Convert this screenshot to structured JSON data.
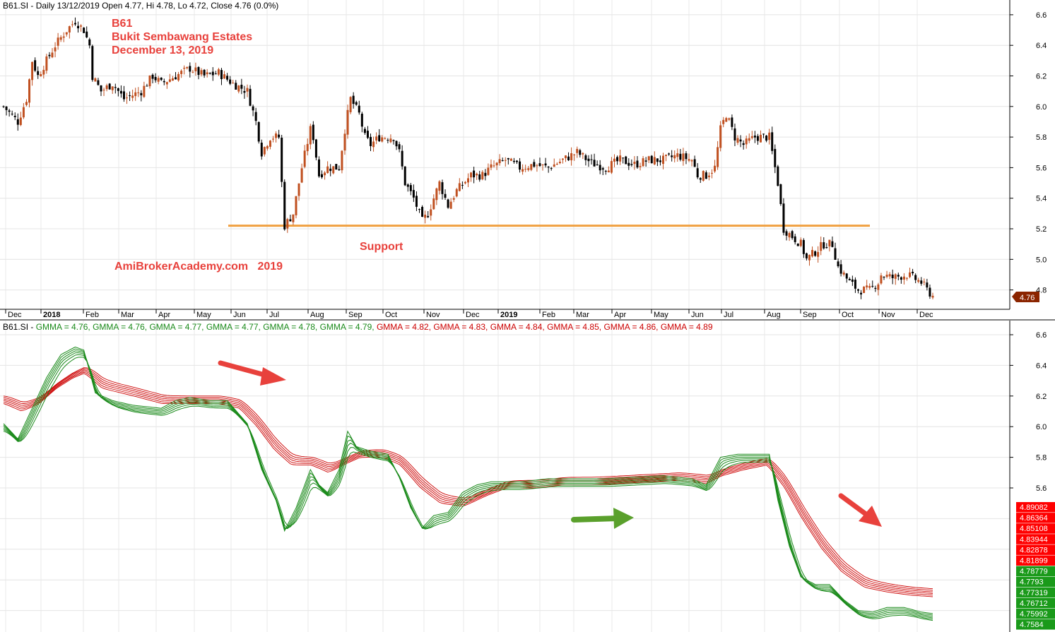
{
  "header": {
    "title_top": "B61.SI - Daily 13/12/2019 Open 4.77, Hi 4.78, Lo 4.72, Close 4.76 (0.0%)",
    "title_bottom": [
      {
        "text": "B61.SI - ",
        "color": "#000000"
      },
      {
        "text": "GMMA = 4.76, ",
        "color": "#1a8a1a"
      },
      {
        "text": "GMMA = 4.76, ",
        "color": "#1a8a1a"
      },
      {
        "text": "GMMA = 4.77, ",
        "color": "#1a8a1a"
      },
      {
        "text": "GMMA = 4.77, ",
        "color": "#1a8a1a"
      },
      {
        "text": "GMMA = 4.78, ",
        "color": "#1a8a1a"
      },
      {
        "text": "GMMA = 4.79, ",
        "color": "#1a8a1a"
      },
      {
        "text": "GMMA = 4.82, ",
        "color": "#cc0000"
      },
      {
        "text": "GMMA = 4.83, ",
        "color": "#cc0000"
      },
      {
        "text": "GMMA = 4.84, ",
        "color": "#cc0000"
      },
      {
        "text": "GMMA = 4.85, ",
        "color": "#cc0000"
      },
      {
        "text": "GMMA = 4.86, ",
        "color": "#cc0000"
      },
      {
        "text": "GMMA = 4.89",
        "color": "#cc0000"
      }
    ]
  },
  "annotations": {
    "ticker": "B61",
    "company": "Bukit Sembawang Estates",
    "date": "December 13, 2019",
    "support_label": "Support",
    "watermark": "AmiBrokerAcademy.com   2019",
    "annotation_color": "#e8413c",
    "support_color": "#f0a040",
    "support_level": 5.22
  },
  "colors": {
    "up_candle": "#c05020",
    "down_candle": "#000000",
    "short_gmma": "#1a8a1a",
    "long_gmma": "#cc0000",
    "price_tag": "#8b2500",
    "arrow_red": "#e8413c",
    "arrow_green": "#5aa02c"
  },
  "chart_data": [
    {
      "type": "candlestick",
      "title": "B61.SI - Daily 13/12/2019 Open 4.77, Hi 4.78, Lo 4.72, Close 4.76 (0.0%)",
      "x_months": [
        "Dec",
        "2018",
        "Feb",
        "Mar",
        "Apr",
        "May",
        "Jun",
        "Jul",
        "Aug",
        "Sep",
        "Oct",
        "Nov",
        "Dec",
        "2019",
        "Feb",
        "Mar",
        "Apr",
        "May",
        "Jun",
        "Jul",
        "Aug",
        "Sep",
        "Oct",
        "Nov",
        "Dec"
      ],
      "y_ticks": [
        "4.8",
        "5.0",
        "5.2",
        "5.4",
        "5.6",
        "5.8",
        "6.0",
        "6.2",
        "6.4",
        "6.6"
      ],
      "ylim": [
        4.7,
        6.65
      ],
      "last_close": "4.76",
      "support": 5.22,
      "close_path": [
        [
          0,
          6.0
        ],
        [
          5,
          5.9
        ],
        [
          8,
          6.05
        ],
        [
          10,
          6.3
        ],
        [
          12,
          6.2
        ],
        [
          18,
          6.4
        ],
        [
          22,
          6.5
        ],
        [
          25,
          6.56
        ],
        [
          28,
          6.5
        ],
        [
          30,
          6.4
        ],
        [
          31,
          6.2
        ],
        [
          34,
          6.1
        ],
        [
          38,
          6.15
        ],
        [
          42,
          6.05
        ],
        [
          48,
          6.1
        ],
        [
          52,
          6.2
        ],
        [
          55,
          6.15
        ],
        [
          60,
          6.2
        ],
        [
          65,
          6.25
        ],
        [
          70,
          6.2
        ],
        [
          75,
          6.22
        ],
        [
          80,
          6.15
        ],
        [
          85,
          6.1
        ],
        [
          88,
          5.9
        ],
        [
          90,
          5.7
        ],
        [
          93,
          5.8
        ],
        [
          96,
          5.8
        ],
        [
          97,
          5.5
        ],
        [
          98,
          5.22
        ],
        [
          101,
          5.3
        ],
        [
          104,
          5.6
        ],
        [
          107,
          5.85
        ],
        [
          108,
          5.8
        ],
        [
          110,
          5.55
        ],
        [
          113,
          5.6
        ],
        [
          117,
          5.6
        ],
        [
          119,
          5.85
        ],
        [
          121,
          6.05
        ],
        [
          124,
          5.95
        ],
        [
          126,
          5.8
        ],
        [
          128,
          5.75
        ],
        [
          131,
          5.8
        ],
        [
          136,
          5.8
        ],
        [
          138,
          5.7
        ],
        [
          140,
          5.5
        ],
        [
          143,
          5.4
        ],
        [
          146,
          5.25
        ],
        [
          148,
          5.3
        ],
        [
          152,
          5.5
        ],
        [
          155,
          5.35
        ],
        [
          158,
          5.45
        ],
        [
          163,
          5.55
        ],
        [
          167,
          5.55
        ],
        [
          170,
          5.6
        ],
        [
          175,
          5.65
        ],
        [
          180,
          5.6
        ],
        [
          185,
          5.62
        ],
        [
          190,
          5.6
        ],
        [
          195,
          5.65
        ],
        [
          200,
          5.7
        ],
        [
          205,
          5.63
        ],
        [
          210,
          5.6
        ],
        [
          215,
          5.65
        ],
        [
          220,
          5.62
        ],
        [
          225,
          5.65
        ],
        [
          230,
          5.65
        ],
        [
          235,
          5.68
        ],
        [
          240,
          5.65
        ],
        [
          242,
          5.55
        ],
        [
          245,
          5.55
        ],
        [
          248,
          5.6
        ],
        [
          250,
          5.85
        ],
        [
          252,
          5.95
        ],
        [
          255,
          5.8
        ],
        [
          258,
          5.75
        ],
        [
          262,
          5.8
        ],
        [
          267,
          5.8
        ],
        [
          268,
          5.7
        ],
        [
          270,
          5.5
        ],
        [
          272,
          5.2
        ],
        [
          275,
          5.15
        ],
        [
          278,
          5.1
        ],
        [
          280,
          5.0
        ],
        [
          283,
          5.05
        ],
        [
          286,
          5.1
        ],
        [
          289,
          5.1
        ],
        [
          291,
          4.95
        ],
        [
          295,
          4.85
        ],
        [
          298,
          4.8
        ],
        [
          302,
          4.8
        ],
        [
          305,
          4.85
        ],
        [
          306,
          4.9
        ],
        [
          310,
          4.88
        ],
        [
          315,
          4.9
        ],
        [
          320,
          4.85
        ],
        [
          322,
          4.8
        ],
        [
          324,
          4.76
        ]
      ]
    },
    {
      "type": "line",
      "title": "GMMA",
      "y_ticks": [
        "5.6",
        "5.8",
        "6.0",
        "6.2",
        "6.4",
        "6.6"
      ],
      "ylim": [
        4.74,
        6.65
      ],
      "short_series_values": [
        "4.78779",
        "4.7793",
        "4.77319",
        "4.76712",
        "4.75992",
        "4.7584"
      ],
      "long_series_values": [
        "4.89082",
        "4.86364",
        "4.85108",
        "4.83944",
        "4.82878",
        "4.81899"
      ],
      "short_path": [
        [
          0,
          6.0
        ],
        [
          5,
          5.9
        ],
        [
          10,
          6.1
        ],
        [
          15,
          6.3
        ],
        [
          20,
          6.45
        ],
        [
          25,
          6.5
        ],
        [
          28,
          6.48
        ],
        [
          32,
          6.2
        ],
        [
          38,
          6.15
        ],
        [
          45,
          6.12
        ],
        [
          55,
          6.1
        ],
        [
          60,
          6.15
        ],
        [
          65,
          6.17
        ],
        [
          72,
          6.15
        ],
        [
          78,
          6.15
        ],
        [
          85,
          6.0
        ],
        [
          90,
          5.7
        ],
        [
          95,
          5.5
        ],
        [
          98,
          5.3
        ],
        [
          102,
          5.45
        ],
        [
          107,
          5.7
        ],
        [
          110,
          5.6
        ],
        [
          113,
          5.55
        ],
        [
          117,
          5.7
        ],
        [
          120,
          5.95
        ],
        [
          123,
          5.85
        ],
        [
          128,
          5.82
        ],
        [
          134,
          5.8
        ],
        [
          138,
          5.65
        ],
        [
          142,
          5.45
        ],
        [
          146,
          5.32
        ],
        [
          150,
          5.4
        ],
        [
          155,
          5.42
        ],
        [
          160,
          5.55
        ],
        [
          165,
          5.6
        ],
        [
          170,
          5.62
        ],
        [
          180,
          5.62
        ],
        [
          190,
          5.64
        ],
        [
          200,
          5.64
        ],
        [
          210,
          5.64
        ],
        [
          220,
          5.65
        ],
        [
          230,
          5.66
        ],
        [
          240,
          5.64
        ],
        [
          245,
          5.6
        ],
        [
          250,
          5.78
        ],
        [
          256,
          5.8
        ],
        [
          262,
          5.8
        ],
        [
          267,
          5.8
        ],
        [
          270,
          5.5
        ],
        [
          274,
          5.2
        ],
        [
          278,
          5.0
        ],
        [
          283,
          4.95
        ],
        [
          288,
          4.95
        ],
        [
          293,
          4.85
        ],
        [
          298,
          4.78
        ],
        [
          303,
          4.77
        ],
        [
          308,
          4.8
        ],
        [
          314,
          4.8
        ],
        [
          320,
          4.77
        ],
        [
          324,
          4.76
        ]
      ],
      "long_path": [
        [
          0,
          6.15
        ],
        [
          6,
          6.1
        ],
        [
          12,
          6.15
        ],
        [
          18,
          6.25
        ],
        [
          24,
          6.32
        ],
        [
          28,
          6.35
        ],
        [
          34,
          6.25
        ],
        [
          45,
          6.2
        ],
        [
          55,
          6.15
        ],
        [
          65,
          6.15
        ],
        [
          75,
          6.15
        ],
        [
          82,
          6.12
        ],
        [
          88,
          6.0
        ],
        [
          94,
          5.85
        ],
        [
          100,
          5.75
        ],
        [
          107,
          5.75
        ],
        [
          113,
          5.7
        ],
        [
          118,
          5.75
        ],
        [
          124,
          5.8
        ],
        [
          132,
          5.8
        ],
        [
          138,
          5.75
        ],
        [
          145,
          5.6
        ],
        [
          152,
          5.5
        ],
        [
          160,
          5.48
        ],
        [
          168,
          5.55
        ],
        [
          175,
          5.6
        ],
        [
          185,
          5.6
        ],
        [
          195,
          5.62
        ],
        [
          205,
          5.62
        ],
        [
          215,
          5.63
        ],
        [
          225,
          5.64
        ],
        [
          235,
          5.65
        ],
        [
          245,
          5.63
        ],
        [
          250,
          5.68
        ],
        [
          258,
          5.72
        ],
        [
          266,
          5.75
        ],
        [
          272,
          5.6
        ],
        [
          278,
          5.4
        ],
        [
          285,
          5.2
        ],
        [
          292,
          5.05
        ],
        [
          300,
          4.95
        ],
        [
          308,
          4.92
        ],
        [
          316,
          4.9
        ],
        [
          324,
          4.89
        ]
      ]
    }
  ]
}
